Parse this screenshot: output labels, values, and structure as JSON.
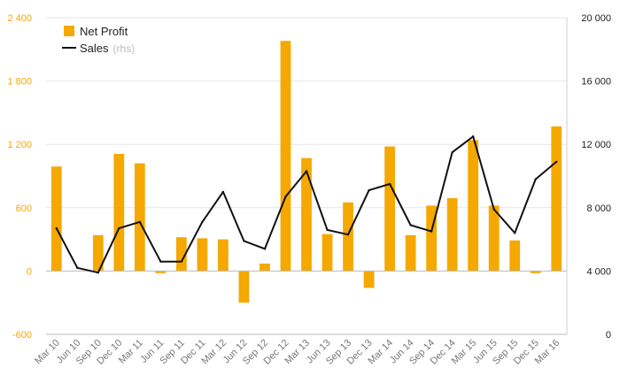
{
  "chart_data": {
    "type": "bar",
    "categories": [
      "Mar 10",
      "Jun 10",
      "Sep 10",
      "Dec 10",
      "Mar 11",
      "Jun 11",
      "Sep 11",
      "Dec 11",
      "Mar 12",
      "Jun 12",
      "Sep 12",
      "Dec 12",
      "Mar 13",
      "Jun 13",
      "Sep 13",
      "Dec 13",
      "Mar 14",
      "Jun 14",
      "Sep 14",
      "Dec 14",
      "Mar 15",
      "Jun 15",
      "Sep 15",
      "Dec 15",
      "Mar 16"
    ],
    "series": [
      {
        "name": "Net Profit",
        "type": "bar",
        "axis": "left",
        "color": "#F5A800",
        "values": [
          990,
          0,
          340,
          1110,
          1020,
          -20,
          320,
          310,
          300,
          -300,
          70,
          2180,
          1070,
          350,
          650,
          -160,
          1180,
          340,
          620,
          690,
          1240,
          620,
          290,
          -20,
          1370
        ]
      },
      {
        "name": "Sales",
        "type": "line",
        "axis": "right",
        "color": "#111111",
        "values": [
          6700,
          4200,
          3900,
          6700,
          7100,
          4600,
          4600,
          7100,
          9000,
          5900,
          5400,
          8700,
          10300,
          6600,
          6300,
          9100,
          9500,
          6900,
          6500,
          11500,
          12500,
          7900,
          6400,
          9800,
          10900
        ]
      }
    ],
    "legend": {
      "position": "top-left",
      "items": [
        {
          "label": "Net Profit",
          "note": ""
        },
        {
          "label": "Sales",
          "note": "(rhs)"
        }
      ]
    },
    "y_left": {
      "ylim": [
        -600,
        2400
      ],
      "ticks": [
        -600,
        0,
        600,
        1200,
        1800,
        2400
      ],
      "tick_labels": [
        "-600",
        "0",
        "600",
        "1 200",
        "1 800",
        "2 400"
      ],
      "color": "#F5A800"
    },
    "y_right": {
      "ylim": [
        0,
        20000
      ],
      "ticks": [
        0,
        4000,
        8000,
        12000,
        16000,
        20000
      ],
      "tick_labels": [
        "0",
        "4 000",
        "8 000",
        "12 000",
        "16 000",
        "20 000"
      ],
      "color": "#222222"
    },
    "grid": true
  }
}
